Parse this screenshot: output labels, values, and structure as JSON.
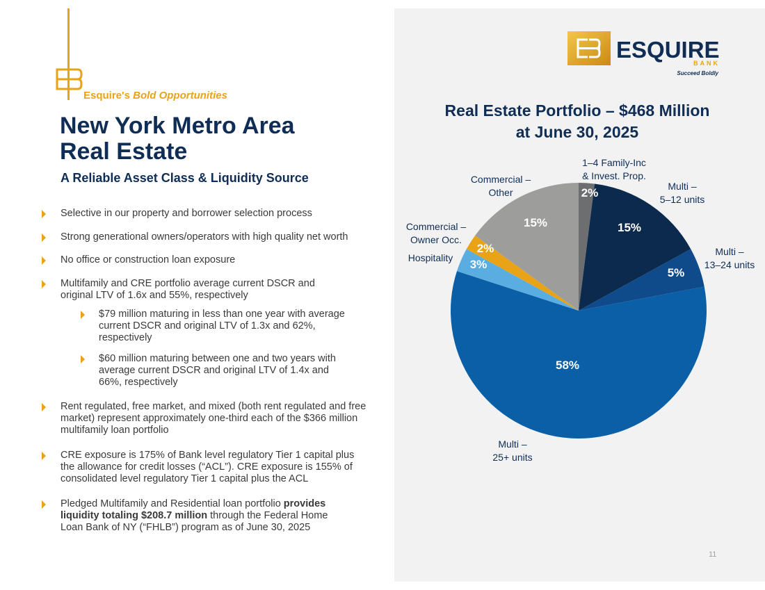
{
  "kicker": {
    "prefix": "Esquire's",
    "emph": "Bold Opportunities"
  },
  "title_line1": "New York Metro Area",
  "title_line2": "Real Estate",
  "subtitle": "A Reliable Asset Class & Liquidity Source",
  "bullets": {
    "b1": "Selective in our property and borrower selection process",
    "b2": "Strong generational owners/operators with high quality net worth",
    "b3": "No office or construction loan exposure",
    "b4": "Multifamily and CRE portfolio average current DSCR and original LTV of 1.6x and 55%, respectively",
    "s1": "$79 million maturing in less than one year with average current DSCR and original LTV of 1.3x and 62%, respectively",
    "s2": "$60 million maturing between one and two years with average current DSCR and original LTV of 1.4x and 66%, respectively",
    "b5": "Rent regulated, free market, and mixed (both rent regulated and free market) represent approximately one-third each of the $366 million multifamily loan portfolio",
    "b6": "CRE exposure is 175% of Bank level regulatory Tier 1 capital plus the allowance for credit losses (“ACL”). CRE exposure is 155% of consolidated level regulatory Tier 1 capital plus the ACL",
    "b7_pre": "Pledged Multifamily and Residential loan portfolio ",
    "b7_bold": "provides liquidity totaling $208.7 million",
    "b7_post": " through the Federal Home Loan Bank of NY (“FHLB”) program as of June 30, 2025"
  },
  "logo": {
    "name": "ESQUIRE",
    "sub": "BANK",
    "tagline": "Succeed Boldly"
  },
  "page_number": "11",
  "colors": {
    "gold": "#e8a317",
    "navy": "#0f2d55",
    "panel": "#f2f2f2"
  },
  "chart_data": {
    "type": "pie",
    "title": "Real Estate Portfolio – $468 Million at June 30, 2025",
    "title_line1": "Real Estate Portfolio – $468 Million",
    "title_line2": "at June 30, 2025",
    "slices": [
      {
        "label": "1–4 Family-Inc & Invest. Prop.",
        "label_lines": [
          "1–4 Family-Inc",
          "& Invest. Prop."
        ],
        "value": 2,
        "display": "2%",
        "color": "#6d6e70"
      },
      {
        "label": "Multi – 5–12 units",
        "label_lines": [
          "Multi –",
          "5–12 units"
        ],
        "value": 15,
        "display": "15%",
        "color": "#0c2a4d"
      },
      {
        "label": "Multi – 13–24 units",
        "label_lines": [
          "Multi –",
          "13–24 units"
        ],
        "value": 5,
        "display": "5%",
        "color": "#0f4a8a"
      },
      {
        "label": "Multi – 25+ units",
        "label_lines": [
          "Multi –",
          "25+ units"
        ],
        "value": 58,
        "display": "58%",
        "color": "#0a5fa6"
      },
      {
        "label": "Hospitality",
        "label_lines": [
          "Hospitality"
        ],
        "value": 3,
        "display": "3%",
        "color": "#5aade0"
      },
      {
        "label": "Commercial – Owner Occ.",
        "label_lines": [
          "Commercial –",
          "Owner Occ."
        ],
        "value": 2,
        "display": "2%",
        "color": "#e8a317"
      },
      {
        "label": "Commercial – Other",
        "label_lines": [
          "Commercial –",
          "Other"
        ],
        "value": 15,
        "display": "15%",
        "color": "#9d9d9b"
      }
    ]
  }
}
